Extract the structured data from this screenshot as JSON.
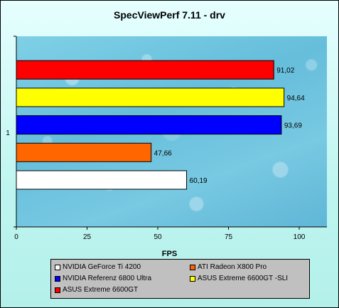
{
  "chart_data": {
    "type": "bar",
    "orientation": "horizontal",
    "title": "SpecViewPerf 7.11 - drv",
    "xlabel": "FPS",
    "ylabel": "",
    "category_label": "1",
    "xlim": [
      0,
      110
    ],
    "xticks": [
      0,
      25,
      50,
      75,
      100
    ],
    "grid": false,
    "legend_position": "bottom",
    "series": [
      {
        "name": "NVIDIA GeForce Ti 4200",
        "value": 60.19,
        "label": "60,19",
        "color": "#ffffff"
      },
      {
        "name": "ATI Radeon X800 Pro",
        "value": 47.66,
        "label": "47,66",
        "color": "#ff6600"
      },
      {
        "name": "NVIDIA  Referenz 6800 Ultra",
        "value": 93.69,
        "label": "93,69",
        "color": "#0000ff"
      },
      {
        "name": "ASUS Extreme 6600GT -SLI",
        "value": 94.64,
        "label": "94,64",
        "color": "#ffff00"
      },
      {
        "name": "ASUS Extreme 6600GT",
        "value": 91.02,
        "label": "91,02",
        "color": "#ff0000"
      }
    ]
  }
}
